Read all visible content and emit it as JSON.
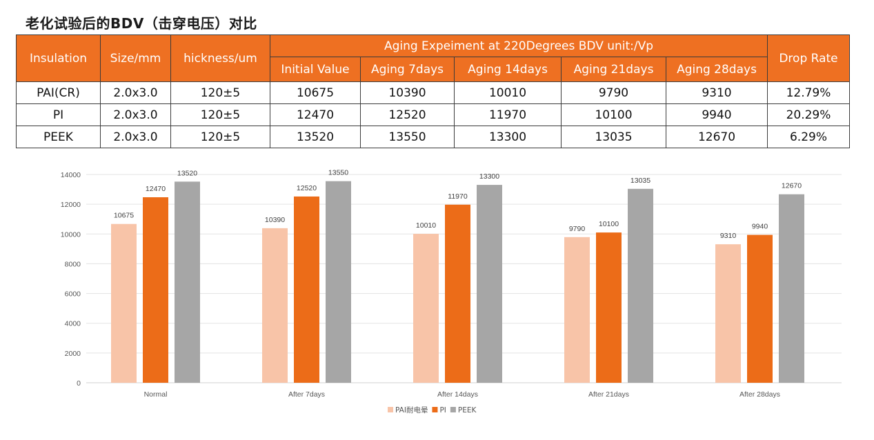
{
  "title": "老化试验后的BDV（击穿电压）对比",
  "table": {
    "headers": {
      "insulation": "Insulation",
      "size": "Size/mm",
      "thickness": "hickness/um",
      "group": "Aging  Expeiment at 220Degrees  BDV unit:/Vp",
      "sub": [
        "Initial Value",
        "Aging 7days",
        "Aging 14days",
        "Aging 21days",
        "Aging 28days"
      ],
      "drop_rate": "Drop Rate"
    },
    "rows": [
      {
        "insulation": "PAI(CR)",
        "size": "2.0x3.0",
        "thickness": "120±5",
        "values": [
          "10675",
          "10390",
          "10010",
          "9790",
          "9310"
        ],
        "drop_rate": "12.79%"
      },
      {
        "insulation": "PI",
        "size": "2.0x3.0",
        "thickness": "120±5",
        "values": [
          "12470",
          "12520",
          "11970",
          "10100",
          "9940"
        ],
        "drop_rate": "20.29%"
      },
      {
        "insulation": "PEEK",
        "size": "2.0x3.0",
        "thickness": "120±5",
        "values": [
          "13520",
          "13550",
          "13300",
          "13035",
          "12670"
        ],
        "drop_rate": "6.29%"
      }
    ]
  },
  "chart_data": {
    "type": "bar",
    "title": "",
    "xlabel": "",
    "ylabel": "",
    "categories": [
      "Normal",
      "After 7days",
      "After 14days",
      "After 21days",
      "After 28days"
    ],
    "series": [
      {
        "name": "PAI耐电晕",
        "color": "#f8c4a8",
        "values": [
          10675,
          10390,
          10010,
          9790,
          9310
        ]
      },
      {
        "name": "PI",
        "color": "#ec6c18",
        "values": [
          12470,
          12520,
          11970,
          10100,
          9940
        ]
      },
      {
        "name": "PEEK",
        "color": "#a6a6a6",
        "values": [
          13520,
          13550,
          13300,
          13035,
          12670
        ]
      }
    ],
    "ylim": [
      0,
      14000
    ],
    "yticks": [
      0,
      2000,
      4000,
      6000,
      8000,
      10000,
      12000,
      14000
    ],
    "grid": true,
    "legend": "bottom",
    "data_labels": true
  }
}
